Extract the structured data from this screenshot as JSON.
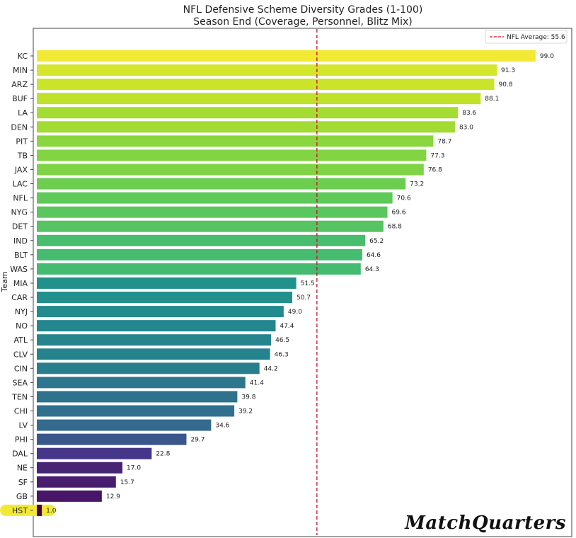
{
  "chart_data": {
    "type": "bar",
    "orientation": "horizontal",
    "title_line1": "NFL Defensive Scheme Diversity Grades (1-100)",
    "title_line2": "Season End (Coverage, Personnel, Blitz Mix)",
    "ylabel": "Team",
    "xlim": [
      0,
      105
    ],
    "reference_line": {
      "label": "NFL Average: 55.6",
      "value": 55.6,
      "color": "#c8102e",
      "style": "dashed"
    },
    "categories": [
      "KC",
      "MIN",
      "ARZ",
      "BUF",
      "LA",
      "DEN",
      "PIT",
      "TB",
      "JAX",
      "LAC",
      "NFL",
      "NYG",
      "DET",
      "IND",
      "BLT",
      "WAS",
      "MIA",
      "CAR",
      "NYJ",
      "NO",
      "ATL",
      "CLV",
      "CIN",
      "SEA",
      "TEN",
      "CHI",
      "LV",
      "PHI",
      "DAL",
      "NE",
      "SF",
      "GB",
      "HST"
    ],
    "values": [
      99.0,
      91.3,
      90.8,
      88.1,
      83.6,
      83.0,
      78.7,
      77.3,
      76.8,
      73.2,
      70.6,
      69.6,
      68.8,
      65.2,
      64.6,
      64.3,
      51.5,
      50.7,
      49.0,
      47.4,
      46.5,
      46.3,
      44.2,
      41.4,
      39.8,
      39.2,
      34.6,
      29.7,
      22.8,
      17.0,
      15.7,
      12.9,
      1.0
    ],
    "value_labels": [
      "99.0",
      "91.3",
      "90.8",
      "88.1",
      "83.6",
      "83.0",
      "78.7",
      "77.3",
      "76.8",
      "73.2",
      "70.6",
      "69.6",
      "68.8",
      "65.2",
      "64.6",
      "64.3",
      "51.5",
      "50.7",
      "49.0",
      "47.4",
      "46.5",
      "46.3",
      "44.2",
      "41.4",
      "39.8",
      "39.2",
      "34.6",
      "29.7",
      "22.8",
      "17.0",
      "15.7",
      "12.9",
      "1.0"
    ],
    "colors": [
      "#f2e935",
      "#d3e62b",
      "#cbe429",
      "#bfe12a",
      "#a5dc33",
      "#a2db34",
      "#8ad63f",
      "#82d443",
      "#7fd345",
      "#6ccd51",
      "#5fc95a",
      "#5ac65e",
      "#56c462",
      "#47bd6d",
      "#45bc6f",
      "#43bb70",
      "#21918c",
      "#22908c",
      "#238b8d",
      "#24868e",
      "#25848e",
      "#25838e",
      "#297e8e",
      "#2c778e",
      "#2e728e",
      "#2f708e",
      "#336a8d",
      "#3b568b",
      "#46368a",
      "#482475",
      "#481c6e",
      "#471668",
      "#440154"
    ],
    "highlight": {
      "team": "HST",
      "color": "#f2e935"
    }
  },
  "watermark": "MatchQuarters"
}
